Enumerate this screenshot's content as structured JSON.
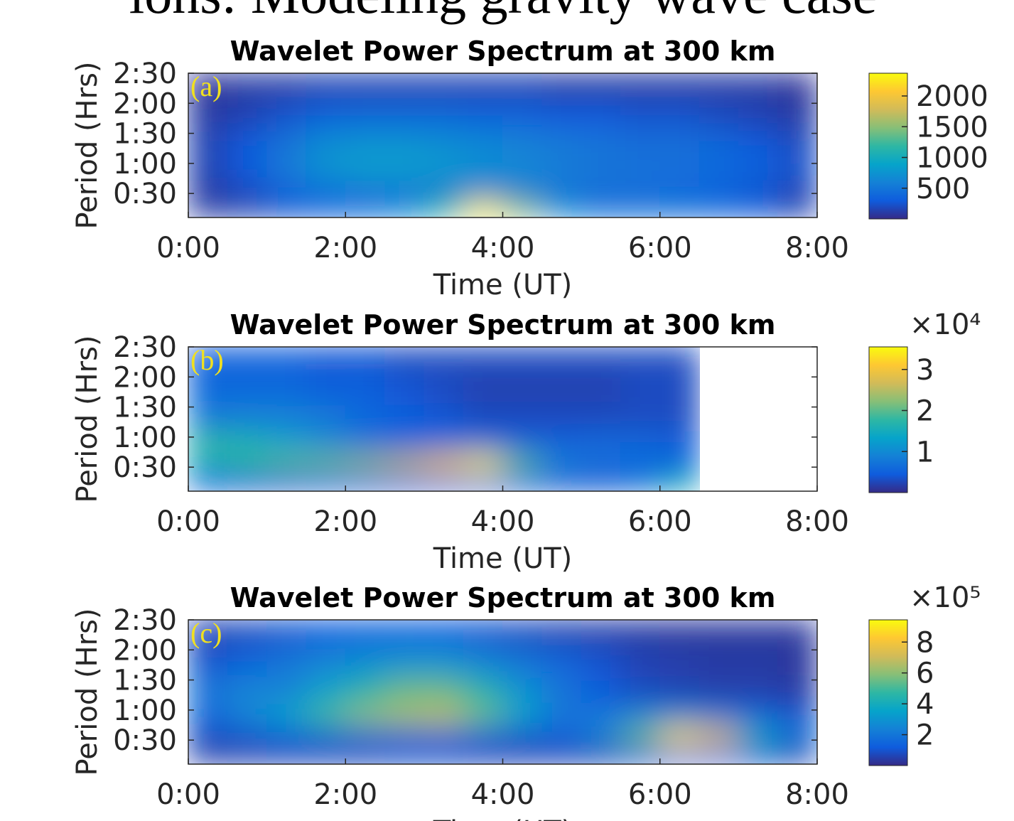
{
  "page_title": "ions: Modeling gravity wave case",
  "chart_data": [
    {
      "type": "heatmap",
      "title": "Wavelet Power Spectrum at 300 km",
      "panel_label": "(a)",
      "xlabel": "Time (UT)",
      "ylabel": "Period (Hrs)",
      "xlim": [
        0,
        8
      ],
      "xticks": [
        {
          "value": 0,
          "label": "0:00"
        },
        {
          "value": 2,
          "label": "2:00"
        },
        {
          "value": 4,
          "label": "4:00"
        },
        {
          "value": 6,
          "label": "6:00"
        },
        {
          "value": 8,
          "label": "8:00"
        }
      ],
      "ylim": [
        0.1,
        2.5
      ],
      "yticks": [
        {
          "value": 0.5,
          "label": "0:30"
        },
        {
          "value": 1,
          "label": "1:00"
        },
        {
          "value": 1.5,
          "label": "1:30"
        },
        {
          "value": 2,
          "label": "2:00"
        },
        {
          "value": 2.5,
          "label": "2:30"
        }
      ],
      "clim": [
        0,
        2370
      ],
      "cticks": [
        500,
        1000,
        1500,
        2000
      ],
      "colormap": [
        "#352a87",
        "#0f5cdd",
        "#1481d6",
        "#06a4ca",
        "#2eb7a4",
        "#87bf77",
        "#d1bb59",
        "#fec832",
        "#f9fb0e"
      ],
      "x": [
        0.25,
        0.75,
        1.25,
        1.75,
        2.25,
        2.75,
        3.25,
        3.75,
        4.25,
        4.75,
        5.25,
        5.75,
        6.25,
        6.75,
        7.25,
        7.75
      ],
      "y": [
        0.25,
        0.55,
        0.9,
        1.3,
        1.8,
        2.3
      ],
      "values": [
        [
          100,
          150,
          250,
          350,
          450,
          650,
          1200,
          2300,
          1500,
          700,
          450,
          450,
          450,
          400,
          300,
          150
        ],
        [
          100,
          200,
          350,
          450,
          500,
          500,
          500,
          550,
          550,
          500,
          450,
          450,
          400,
          350,
          250,
          150
        ],
        [
          150,
          300,
          550,
          750,
          850,
          850,
          800,
          700,
          650,
          550,
          500,
          450,
          450,
          400,
          350,
          250
        ],
        [
          150,
          300,
          500,
          700,
          750,
          750,
          700,
          650,
          600,
          550,
          500,
          450,
          450,
          400,
          300,
          200
        ],
        [
          100,
          150,
          250,
          350,
          400,
          400,
          400,
          350,
          350,
          300,
          300,
          250,
          250,
          200,
          150,
          100
        ],
        [
          50,
          100,
          100,
          150,
          150,
          150,
          150,
          150,
          150,
          100,
          100,
          100,
          100,
          100,
          100,
          50
        ]
      ]
    },
    {
      "type": "heatmap",
      "title": "Wavelet Power Spectrum at 300 km",
      "panel_label": "(b)",
      "xlabel": "Time (UT)",
      "ylabel": "Period (Hrs)",
      "multiplier": "×10⁴",
      "xlim": [
        0,
        8
      ],
      "xticks": [
        {
          "value": 0,
          "label": "0:00"
        },
        {
          "value": 2,
          "label": "2:00"
        },
        {
          "value": 4,
          "label": "4:00"
        },
        {
          "value": 6,
          "label": "6:00"
        },
        {
          "value": 8,
          "label": "8:00"
        }
      ],
      "ylim": [
        0.1,
        2.5
      ],
      "yticks": [
        {
          "value": 0.5,
          "label": "0:30"
        },
        {
          "value": 1,
          "label": "1:00"
        },
        {
          "value": 1.5,
          "label": "1:30"
        },
        {
          "value": 2,
          "label": "2:00"
        },
        {
          "value": 2.5,
          "label": "2:30"
        }
      ],
      "clim": [
        0,
        3.55
      ],
      "cticks": [
        1,
        2,
        3
      ],
      "colormap": [
        "#352a87",
        "#0f5cdd",
        "#1481d6",
        "#06a4ca",
        "#2eb7a4",
        "#87bf77",
        "#d1bb59",
        "#fec832",
        "#f9fb0e"
      ],
      "x": [
        0.25,
        0.75,
        1.25,
        1.75,
        2.25,
        2.75,
        3.25,
        3.75,
        4.25,
        4.75,
        5.25,
        5.75,
        6.25,
        6.75,
        7.25,
        7.75
      ],
      "y": [
        0.25,
        0.55,
        0.9,
        1.3,
        1.8,
        2.3
      ],
      "values": [
        [
          0.5,
          0.4,
          0.4,
          0.5,
          0.5,
          0.5,
          0.6,
          0.6,
          0.5,
          0.4,
          0.4,
          0.7,
          1.5,
          null,
          null,
          null
        ],
        [
          1.5,
          1.8,
          2.0,
          2.1,
          2.3,
          2.6,
          3.0,
          3.4,
          2.0,
          0.9,
          0.7,
          0.6,
          0.5,
          null,
          null,
          null
        ],
        [
          1.8,
          1.6,
          1.3,
          1.0,
          0.7,
          0.5,
          0.6,
          0.6,
          0.5,
          0.5,
          0.6,
          0.6,
          0.5,
          null,
          null,
          null
        ],
        [
          0.8,
          0.9,
          0.9,
          0.8,
          0.6,
          0.5,
          0.4,
          0.3,
          0.3,
          0.3,
          0.3,
          0.3,
          0.3,
          null,
          null,
          null
        ],
        [
          0.6,
          0.6,
          0.6,
          0.5,
          0.5,
          0.4,
          0.3,
          0.2,
          0.2,
          0.2,
          0.2,
          0.3,
          0.3,
          null,
          null,
          null
        ],
        [
          0.5,
          0.5,
          0.5,
          0.4,
          0.4,
          0.3,
          0.3,
          0.3,
          0.3,
          0.3,
          0.3,
          0.3,
          0.3,
          null,
          null,
          null
        ]
      ]
    },
    {
      "type": "heatmap",
      "title": "Wavelet Power Spectrum at 300 km",
      "panel_label": "(c)",
      "xlabel": "Time (UT)",
      "ylabel": "Period (Hrs)",
      "multiplier": "×10⁵",
      "xlim": [
        0,
        8
      ],
      "xticks": [
        {
          "value": 0,
          "label": "0:00"
        },
        {
          "value": 2,
          "label": "2:00"
        },
        {
          "value": 4,
          "label": "4:00"
        },
        {
          "value": 6,
          "label": "6:00"
        },
        {
          "value": 8,
          "label": "8:00"
        }
      ],
      "ylim": [
        0.1,
        2.5
      ],
      "yticks": [
        {
          "value": 0.5,
          "label": "0:30"
        },
        {
          "value": 1,
          "label": "1:00"
        },
        {
          "value": 1.5,
          "label": "1:30"
        },
        {
          "value": 2,
          "label": "2:00"
        },
        {
          "value": 2.5,
          "label": "2:30"
        }
      ],
      "clim": [
        0,
        9.44
      ],
      "cticks": [
        2,
        4,
        6,
        8
      ],
      "colormap": [
        "#352a87",
        "#0f5cdd",
        "#1481d6",
        "#06a4ca",
        "#2eb7a4",
        "#87bf77",
        "#d1bb59",
        "#fec832",
        "#f9fb0e"
      ],
      "x": [
        0.25,
        0.75,
        1.25,
        1.75,
        2.25,
        2.75,
        3.25,
        3.75,
        4.25,
        4.75,
        5.25,
        5.75,
        6.25,
        6.75,
        7.25,
        7.75
      ],
      "y": [
        0.25,
        0.55,
        0.9,
        1.3,
        1.8,
        2.3
      ],
      "values": [
        [
          0.5,
          0.5,
          0.6,
          0.6,
          0.6,
          0.8,
          0.8,
          0.6,
          0.6,
          0.6,
          0.6,
          1.0,
          1.5,
          1.5,
          1.0,
          0.6
        ],
        [
          0.8,
          1.0,
          1.2,
          1.5,
          1.5,
          1.5,
          1.5,
          1.2,
          1.0,
          1.2,
          2.5,
          5.5,
          8.8,
          7.5,
          4.0,
          2.0
        ],
        [
          1.5,
          2.5,
          3.5,
          5.0,
          6.0,
          6.5,
          6.8,
          5.5,
          3.5,
          2.0,
          2.0,
          2.5,
          2.5,
          2.0,
          1.5,
          1.0
        ],
        [
          2.0,
          2.5,
          2.5,
          3.5,
          4.5,
          5.5,
          5.5,
          4.5,
          3.0,
          2.0,
          1.2,
          0.8,
          0.6,
          0.5,
          0.5,
          0.4
        ],
        [
          1.0,
          1.5,
          2.0,
          2.5,
          2.8,
          3.0,
          3.0,
          2.5,
          2.0,
          1.5,
          1.0,
          0.6,
          0.5,
          0.4,
          0.4,
          0.3
        ],
        [
          0.6,
          0.8,
          1.0,
          1.2,
          1.3,
          1.3,
          1.2,
          1.0,
          0.8,
          0.6,
          0.5,
          0.4,
          0.3,
          0.3,
          0.3,
          0.3
        ]
      ]
    }
  ]
}
